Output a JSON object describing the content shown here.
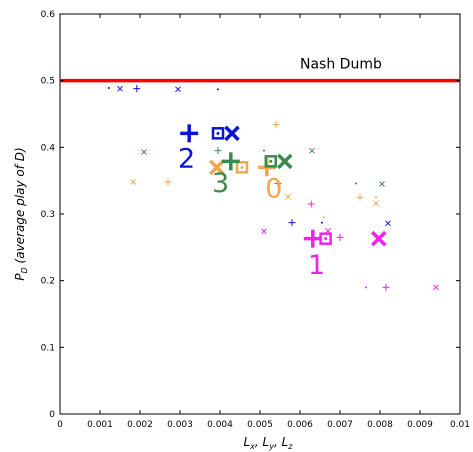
{
  "chart_data": {
    "type": "scatter",
    "xlim": [
      0,
      0.01
    ],
    "ylim": [
      0,
      0.6
    ],
    "x_ticks": [
      "0",
      "0.001",
      "0.002",
      "0.003",
      "0.004",
      "0.005",
      "0.006",
      "0.007",
      "0.008",
      "0.009",
      "0.01"
    ],
    "y_ticks": [
      "0",
      "0.1",
      "0.2",
      "0.3",
      "0.4",
      "0.5",
      "0.6"
    ],
    "xlabel": "Lx, Ly, Lz",
    "ylabel": "PD (average play of D)",
    "grid": false,
    "reference_line": {
      "y": 0.5,
      "label": "Nash Dumb",
      "color": "#ff0000"
    },
    "groups": [
      {
        "label": "0",
        "color": "#f5a54a",
        "label_pos": {
          "x": 0.00513,
          "y": 0.325
        },
        "centroids": [
          {
            "marker": "plus",
            "x": 0.00517,
            "y": 0.37
          },
          {
            "marker": "cross",
            "x": 0.00392,
            "y": 0.37
          },
          {
            "marker": "square-dot",
            "x": 0.00455,
            "y": 0.37
          }
        ],
        "points": [
          {
            "marker": "plus",
            "x": 0.0054,
            "y": 0.434
          },
          {
            "marker": "plus",
            "x": 0.0027,
            "y": 0.348
          },
          {
            "marker": "plus",
            "x": 0.0075,
            "y": 0.325
          },
          {
            "marker": "cross",
            "x": 0.00183,
            "y": 0.348
          },
          {
            "marker": "cross",
            "x": 0.0057,
            "y": 0.326
          },
          {
            "marker": "cross",
            "x": 0.0079,
            "y": 0.316
          },
          {
            "marker": "dot",
            "x": 0.004,
            "y": 0.43
          },
          {
            "marker": "dot",
            "x": 0.0066,
            "y": 0.295
          },
          {
            "marker": "dot",
            "x": 0.0079,
            "y": 0.325
          }
        ]
      },
      {
        "label": "1",
        "color": "#ee22ee",
        "label_pos": {
          "x": 0.0062,
          "y": 0.21
        },
        "centroids": [
          {
            "marker": "plus",
            "x": 0.00632,
            "y": 0.263
          },
          {
            "marker": "cross",
            "x": 0.00797,
            "y": 0.263
          },
          {
            "marker": "square-dot",
            "x": 0.00664,
            "y": 0.263
          }
        ],
        "points": [
          {
            "marker": "plus",
            "x": 0.00628,
            "y": 0.315
          },
          {
            "marker": "plus",
            "x": 0.007,
            "y": 0.265
          },
          {
            "marker": "plus",
            "x": 0.00815,
            "y": 0.19
          },
          {
            "marker": "cross",
            "x": 0.0051,
            "y": 0.274
          },
          {
            "marker": "cross",
            "x": 0.0067,
            "y": 0.275
          },
          {
            "marker": "cross",
            "x": 0.0094,
            "y": 0.19
          },
          {
            "marker": "dot",
            "x": 0.00765,
            "y": 0.19
          },
          {
            "marker": "dot",
            "x": 0.0063,
            "y": 0.27
          }
        ]
      },
      {
        "label": "2",
        "color": "#0a14d6",
        "label_pos": {
          "x": 0.00295,
          "y": 0.37
        },
        "centroids": [
          {
            "marker": "plus",
            "x": 0.00323,
            "y": 0.421
          },
          {
            "marker": "cross",
            "x": 0.0043,
            "y": 0.421
          },
          {
            "marker": "square-dot",
            "x": 0.00395,
            "y": 0.421
          }
        ],
        "points": [
          {
            "marker": "plus",
            "x": 0.00192,
            "y": 0.488
          },
          {
            "marker": "plus",
            "x": 0.0058,
            "y": 0.287
          },
          {
            "marker": "cross",
            "x": 0.0015,
            "y": 0.488
          },
          {
            "marker": "cross",
            "x": 0.00295,
            "y": 0.487
          },
          {
            "marker": "cross",
            "x": 0.0082,
            "y": 0.286
          },
          {
            "marker": "dot",
            "x": 0.00122,
            "y": 0.489
          },
          {
            "marker": "dot",
            "x": 0.00395,
            "y": 0.487
          },
          {
            "marker": "dot",
            "x": 0.00655,
            "y": 0.287
          }
        ]
      },
      {
        "label": "3",
        "color": "#3a8a52",
        "label_pos": {
          "x": 0.0038,
          "y": 0.333
        },
        "centroids": [
          {
            "marker": "plus",
            "x": 0.00427,
            "y": 0.379
          },
          {
            "marker": "cross",
            "x": 0.00562,
            "y": 0.379
          },
          {
            "marker": "square-dot",
            "x": 0.00527,
            "y": 0.379
          }
        ],
        "points": [
          {
            "marker": "plus",
            "x": 0.00395,
            "y": 0.395
          },
          {
            "marker": "plus",
            "x": 0.00545,
            "y": 0.346
          },
          {
            "marker": "cross",
            "x": 0.0021,
            "y": 0.393
          },
          {
            "marker": "cross",
            "x": 0.0063,
            "y": 0.395
          },
          {
            "marker": "cross",
            "x": 0.00805,
            "y": 0.345
          },
          {
            "marker": "dot",
            "x": 0.0051,
            "y": 0.395
          },
          {
            "marker": "dot",
            "x": 0.0074,
            "y": 0.346
          }
        ]
      }
    ]
  }
}
